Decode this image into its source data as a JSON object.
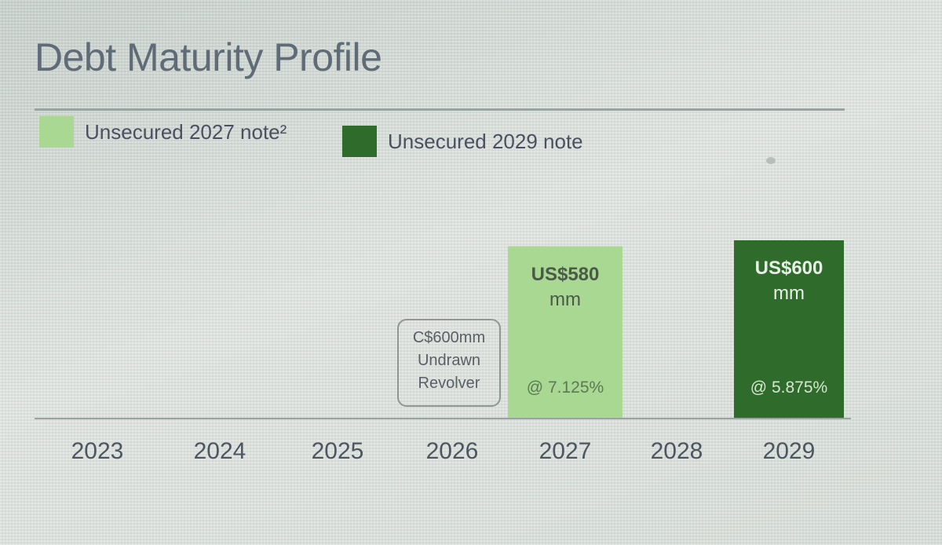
{
  "chart_data": {
    "type": "bar",
    "title": "Debt Maturity Profile",
    "categories": [
      "2023",
      "2024",
      "2025",
      "2026",
      "2027",
      "2028",
      "2029"
    ],
    "legend": [
      {
        "name": "Unsecured 2027 note²",
        "color": "#a8d891"
      },
      {
        "name": "Unsecured 2029 note",
        "color": "#2f6b2a"
      }
    ],
    "series": [
      {
        "name": "Unsecured 2027 note²",
        "values": [
          0,
          0,
          0,
          0,
          580,
          0,
          0
        ],
        "color": "#a8d891"
      },
      {
        "name": "Unsecured 2029 note",
        "values": [
          0,
          0,
          0,
          0,
          0,
          0,
          600
        ],
        "color": "#2f6b2a"
      }
    ],
    "bar_labels": [
      {
        "category": "2027",
        "amount_line1": "US$580",
        "amount_line2": "mm",
        "rate": "@ 7.125%"
      },
      {
        "category": "2029",
        "amount_line1": "US$600",
        "amount_line2": "mm",
        "rate": "@ 5.875%"
      }
    ],
    "annotations": [
      {
        "category": "2026",
        "lines": [
          "C$600mm",
          "Undrawn",
          "Revolver"
        ]
      }
    ],
    "ylim": [
      0,
      600
    ],
    "xlabel": "",
    "ylabel": "",
    "grid": false,
    "legend_position": "top-left"
  }
}
